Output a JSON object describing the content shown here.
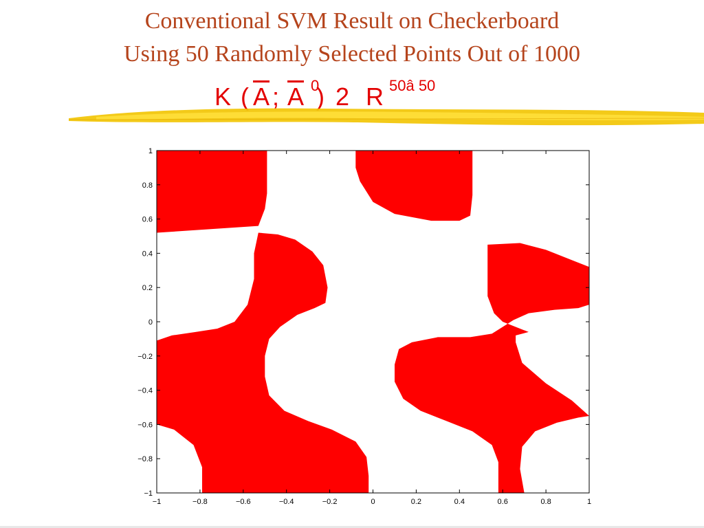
{
  "slide": {
    "title_line1": "Conventional SVM Result on Checkerboard",
    "title_line2": "Using 50 Randomly Selected Points Out of 1000",
    "formula": {
      "k": "K",
      "open": "(",
      "a1": "A",
      "semi": ";",
      "a2": "A",
      "prime": "0",
      "close": ")",
      "in": "2",
      "r": "R",
      "dims": "50â 50"
    }
  },
  "colors": {
    "title": "#b5441c",
    "formula": "#e30000",
    "region": "#ff0000",
    "brush": "#f2c400"
  },
  "chart_data": {
    "type": "heatmap",
    "title": "",
    "xlabel": "",
    "ylabel": "",
    "xlim": [
      -1,
      1
    ],
    "ylim": [
      -1,
      1
    ],
    "x_ticks": [
      -1,
      -0.8,
      -0.6,
      -0.4,
      -0.2,
      0,
      0.2,
      0.4,
      0.6,
      0.8,
      1
    ],
    "y_ticks": [
      -1,
      -0.8,
      -0.6,
      -0.4,
      -0.2,
      0,
      0.2,
      0.4,
      0.6,
      0.8,
      1
    ],
    "x_tick_labels": [
      "−1",
      "−0.8",
      "−0.6",
      "−0.4",
      "−0.2",
      "0",
      "0.2",
      "0.4",
      "0.6",
      "0.8",
      "1"
    ],
    "y_tick_labels": [
      "−1",
      "−0.8",
      "−0.6",
      "−0.4",
      "−0.2",
      "0",
      "0.2",
      "0.4",
      "0.6",
      "0.8",
      "1"
    ],
    "grid": false,
    "legend": "none",
    "regions": [
      {
        "name": "top-left",
        "points": [
          [
            -1,
            1
          ],
          [
            -0.49,
            1
          ],
          [
            -0.49,
            0.75
          ],
          [
            -0.5,
            0.66
          ],
          [
            -0.53,
            0.56
          ],
          [
            -1,
            0.52
          ]
        ]
      },
      {
        "name": "top-center",
        "points": [
          [
            -0.08,
            1
          ],
          [
            0.46,
            1
          ],
          [
            0.46,
            0.74
          ],
          [
            0.45,
            0.62
          ],
          [
            0.4,
            0.59
          ],
          [
            0.27,
            0.59
          ],
          [
            0.1,
            0.63
          ],
          [
            0,
            0.7
          ],
          [
            -0.06,
            0.82
          ],
          [
            -0.08,
            0.9
          ]
        ]
      },
      {
        "name": "center-left",
        "points": [
          [
            -0.53,
            0.52
          ],
          [
            -0.44,
            0.51
          ],
          [
            -0.36,
            0.48
          ],
          [
            -0.28,
            0.41
          ],
          [
            -0.23,
            0.33
          ],
          [
            -0.21,
            0.2
          ],
          [
            -0.22,
            0.11
          ],
          [
            -0.27,
            0.08
          ],
          [
            -0.35,
            0.04
          ],
          [
            -0.43,
            -0.03
          ],
          [
            -0.48,
            -0.1
          ],
          [
            -0.5,
            -0.2
          ],
          [
            -0.5,
            -0.32
          ],
          [
            -0.48,
            -0.43
          ],
          [
            -0.41,
            -0.52
          ],
          [
            -0.3,
            -0.58
          ],
          [
            -0.19,
            -0.63
          ],
          [
            -0.08,
            -0.7
          ],
          [
            -0.03,
            -0.79
          ],
          [
            -0.02,
            -0.9
          ],
          [
            -0.02,
            -1
          ],
          [
            -0.79,
            -1
          ],
          [
            -0.79,
            -0.85
          ],
          [
            -0.83,
            -0.72
          ],
          [
            -0.92,
            -0.63
          ],
          [
            -1,
            -0.6
          ],
          [
            -1,
            -0.11
          ],
          [
            -0.93,
            -0.08
          ],
          [
            -0.82,
            -0.06
          ],
          [
            -0.72,
            -0.04
          ],
          [
            -0.64,
            0
          ],
          [
            -0.58,
            0.1
          ],
          [
            -0.55,
            0.25
          ],
          [
            -0.55,
            0.4
          ]
        ]
      },
      {
        "name": "center-right",
        "points": [
          [
            0.53,
            0.45
          ],
          [
            0.68,
            0.46
          ],
          [
            0.8,
            0.42
          ],
          [
            0.88,
            0.38
          ],
          [
            1,
            0.32
          ],
          [
            1,
            0.1
          ],
          [
            0.95,
            0.08
          ],
          [
            0.84,
            0.07
          ],
          [
            0.72,
            0.05
          ],
          [
            0.65,
            0.01
          ],
          [
            0.6,
            -0.03
          ],
          [
            0.55,
            -0.07
          ],
          [
            0.45,
            -0.09
          ],
          [
            0.3,
            -0.09
          ],
          [
            0.18,
            -0.12
          ],
          [
            0.12,
            -0.16
          ],
          [
            0.1,
            -0.25
          ],
          [
            0.1,
            -0.35
          ],
          [
            0.14,
            -0.45
          ],
          [
            0.22,
            -0.52
          ],
          [
            0.34,
            -0.58
          ],
          [
            0.46,
            -0.64
          ],
          [
            0.55,
            -0.72
          ],
          [
            0.58,
            -0.82
          ],
          [
            0.58,
            -1
          ],
          [
            0.7,
            -1
          ],
          [
            0.68,
            -0.86
          ],
          [
            0.69,
            -0.73
          ],
          [
            0.75,
            -0.64
          ],
          [
            0.85,
            -0.59
          ],
          [
            0.95,
            -0.56
          ],
          [
            1,
            -0.55
          ],
          [
            1,
            -0.55
          ],
          [
            0.92,
            -0.46
          ],
          [
            0.8,
            -0.36
          ],
          [
            0.69,
            -0.24
          ],
          [
            0.66,
            -0.12
          ],
          [
            0.66,
            -0.08
          ],
          [
            0.72,
            -0.06
          ],
          [
            0.6,
            0.0
          ],
          [
            0.56,
            0.05
          ],
          [
            0.53,
            0.15
          ],
          [
            0.53,
            0.3
          ]
        ]
      }
    ]
  }
}
